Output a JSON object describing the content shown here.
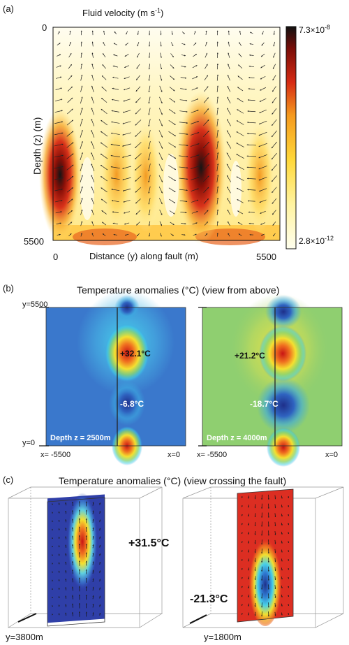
{
  "panel_a": {
    "label": "(a)",
    "title": "Fluid velocity (m s",
    "title_sup": "-1",
    "title_close": ")",
    "y_label": "Depth (z) (m)",
    "y_top": "0",
    "y_bottom": "5500",
    "x_label": "Distance (y) along fault  (m)",
    "x_left": "0",
    "x_right": "5500",
    "cbar_max_base": "7.3×10",
    "cbar_max_exp": "-8",
    "cbar_min_base": "2.8×10",
    "cbar_min_exp": "-12"
  },
  "panel_b": {
    "label": "(b)",
    "title": "Temperature anomalies (°C) (view from above)",
    "left": {
      "y_top": "y=5500",
      "y_bottom": "y=0",
      "x_left": "x= -5500",
      "x_right": "x=0",
      "hot": "+32.1°C",
      "cold": "-6.8°C",
      "depth": "Depth z = 2500m"
    },
    "right": {
      "x_left": "x= -5500",
      "x_right": "x=0",
      "hot": "+21.2°C",
      "cold": "-18.7°C",
      "depth": "Depth z = 4000m"
    }
  },
  "panel_c": {
    "label": "(c)",
    "title": "Temperature anomalies (°C) (view crossing the fault)",
    "left_value": "+31.5°C",
    "left_y": "y=3800m",
    "right_value": "-21.3°C",
    "right_y": "y=1800m"
  },
  "colors": {
    "colormap_velocity": [
      "#ffffee",
      "#fff3a0",
      "#ffd83a",
      "#f59a1e",
      "#d62a14",
      "#7a0d08",
      "#111111"
    ],
    "colormap_temperature": [
      "#2e52a8",
      "#3c9be0",
      "#3fd0e8",
      "#9ed36a",
      "#f0e030",
      "#f08020",
      "#d81e1e"
    ]
  }
}
